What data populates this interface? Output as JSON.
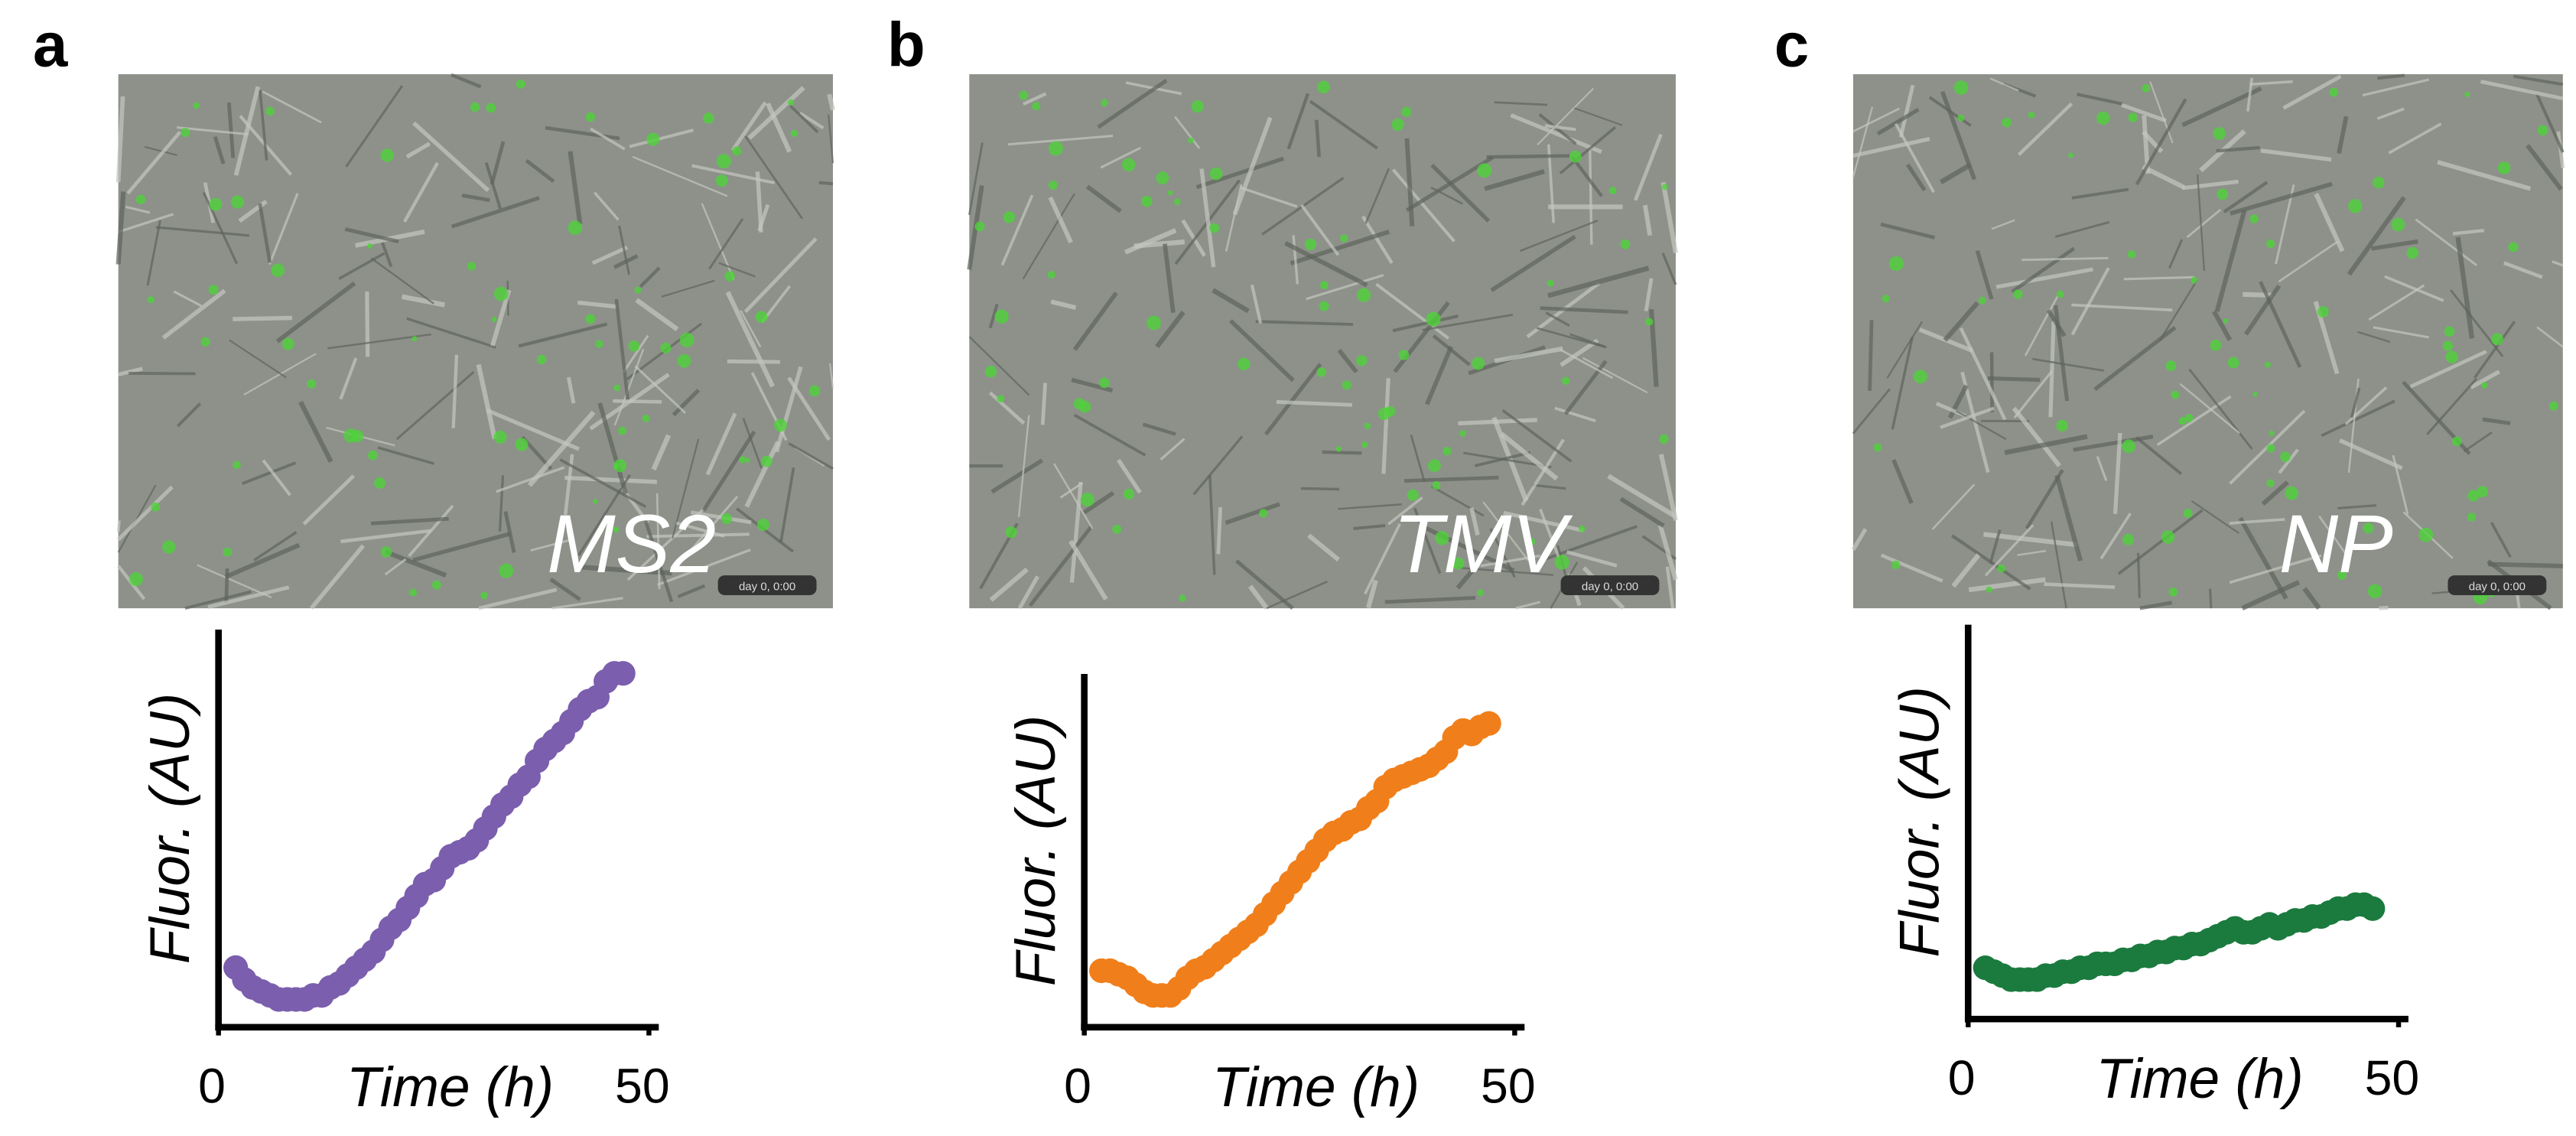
{
  "chart_data": [
    {
      "type": "scatter",
      "panel_label": "a",
      "image_label": "MS2",
      "timestamp": "day 0, 0:00",
      "xlabel": "Time (h)",
      "ylabel": "Fluor. (AU)",
      "xlim": [
        0,
        50
      ],
      "xticks": [
        0,
        50
      ],
      "ylim": [
        0,
        100
      ],
      "series": [
        {
          "name": "MS2",
          "color": "#7b5ead",
          "x": [
            2,
            3,
            4,
            5,
            6,
            7,
            8,
            9,
            10,
            11,
            12,
            13,
            14,
            15,
            16,
            17,
            18,
            19,
            20,
            21,
            22,
            23,
            24,
            25,
            26,
            27,
            28,
            29,
            30,
            31,
            32,
            33,
            34,
            35,
            36,
            37,
            38,
            39,
            40,
            41,
            42,
            43,
            44,
            45,
            46,
            47
          ],
          "values": [
            15,
            12,
            10,
            9,
            8,
            7,
            7,
            7,
            7,
            8,
            8,
            10,
            11,
            13,
            15,
            17,
            19,
            22,
            25,
            27,
            30,
            33,
            36,
            37,
            40,
            43,
            44,
            45,
            47,
            50,
            53,
            56,
            58,
            61,
            63,
            67,
            70,
            72,
            74,
            77,
            80,
            82,
            83,
            87,
            89,
            89
          ]
        }
      ]
    },
    {
      "type": "scatter",
      "panel_label": "b",
      "image_label": "TMV",
      "timestamp": "day 0, 0:00",
      "xlabel": "Time (h)",
      "ylabel": "Fluor. (AU)",
      "xlim": [
        0,
        50
      ],
      "xticks": [
        0,
        50
      ],
      "ylim": [
        0,
        100
      ],
      "series": [
        {
          "name": "TMV",
          "color": "#f07f1b",
          "x": [
            2,
            3,
            4,
            5,
            6,
            7,
            8,
            9,
            10,
            11,
            12,
            13,
            14,
            15,
            16,
            17,
            18,
            19,
            20,
            21,
            22,
            23,
            24,
            25,
            26,
            27,
            28,
            29,
            30,
            31,
            32,
            33,
            34,
            35,
            36,
            37,
            38,
            39,
            40,
            41,
            42,
            43,
            44,
            45,
            46,
            47
          ],
          "values": [
            16,
            16,
            15,
            14,
            12,
            10,
            9,
            9,
            9,
            11,
            14,
            16,
            17,
            19,
            21,
            23,
            25,
            27,
            29,
            32,
            35,
            38,
            41,
            44,
            47,
            50,
            53,
            55,
            56,
            58,
            59,
            62,
            64,
            68,
            70,
            71,
            72,
            73,
            74,
            76,
            78,
            82,
            84,
            83,
            85,
            86
          ]
        }
      ]
    },
    {
      "type": "scatter",
      "panel_label": "c",
      "image_label": "NP",
      "timestamp": "day 0, 0:00",
      "xlabel": "Time (h)",
      "ylabel": "Fluor. (AU)",
      "xlim": [
        0,
        50
      ],
      "xticks": [
        0,
        50
      ],
      "ylim": [
        0,
        100
      ],
      "series": [
        {
          "name": "NP",
          "color": "#1b7a3e",
          "x": [
            2,
            3,
            4,
            5,
            6,
            7,
            8,
            9,
            10,
            11,
            12,
            13,
            14,
            15,
            16,
            17,
            18,
            19,
            20,
            21,
            22,
            23,
            24,
            25,
            26,
            27,
            28,
            29,
            30,
            31,
            32,
            33,
            34,
            35,
            36,
            37,
            38,
            39,
            40,
            41,
            42,
            43,
            44,
            45,
            46,
            47
          ],
          "values": [
            13,
            12,
            11,
            10,
            10,
            10,
            10,
            11,
            11,
            12,
            12,
            13,
            13,
            14,
            14,
            14,
            15,
            15,
            16,
            16,
            17,
            17,
            18,
            18,
            19,
            19,
            20,
            21,
            22,
            23,
            22,
            22,
            23,
            24,
            23,
            24,
            25,
            25,
            26,
            26,
            27,
            28,
            28,
            29,
            29,
            28
          ]
        }
      ]
    }
  ]
}
